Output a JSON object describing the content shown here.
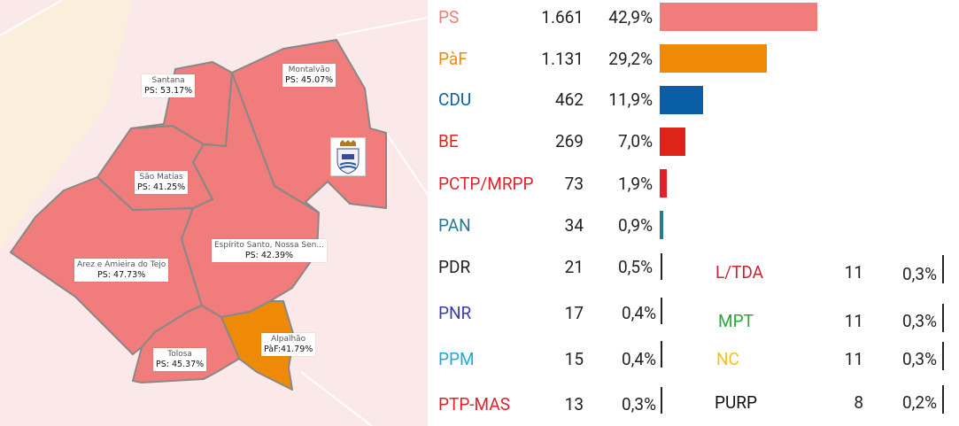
{
  "colors": {
    "ps": "#f07c7c",
    "paf": "#ee8a05",
    "cdu": "#0a5ea8",
    "be": "#dd2419",
    "pctp": "#e1222d",
    "pan": "#2a7a8f",
    "pdr": "#222222",
    "pnr": "#3c3cb4",
    "ppm": "#21a8dc",
    "ptp": "#e1222d",
    "ltda": "#cc2233",
    "mpt": "#28a83a",
    "nc": "#f2c21b",
    "purp": "#111111"
  },
  "map": {
    "crest_icon": "municipality-coat-of-arms-icon",
    "parishes": [
      {
        "name": "Santana",
        "result": "PS: 53.17%",
        "winner": "PS"
      },
      {
        "name": "Montalvão",
        "result": "PS: 45.07%",
        "winner": "PS"
      },
      {
        "name": "São Matias",
        "result": "PS: 41.25%",
        "winner": "PS"
      },
      {
        "name": "Espírito Santo, Nossa Sen...",
        "result": "PS: 42.39%",
        "winner": "PS"
      },
      {
        "name": "Arez e Amieira do Tejo",
        "result": "PS: 47.73%",
        "winner": "PS"
      },
      {
        "name": "Alpalhão",
        "result": "PàF:41.79%",
        "winner": "PàF"
      },
      {
        "name": "Tolosa",
        "result": "PS: 45.37%",
        "winner": "PS"
      }
    ]
  },
  "results": {
    "main": [
      {
        "party": "PS",
        "votes": "1.661",
        "pct": "42,9%",
        "share": 42.9,
        "color": "#f07c7c"
      },
      {
        "party": "PàF",
        "votes": "1.131",
        "pct": "29,2%",
        "share": 29.2,
        "color": "#ee8a05"
      },
      {
        "party": "CDU",
        "votes": "462",
        "pct": "11,9%",
        "share": 11.9,
        "color": "#0a5ea8"
      },
      {
        "party": "BE",
        "votes": "269",
        "pct": "7,0%",
        "share": 7.0,
        "color": "#dd2419"
      },
      {
        "party": "PCTP/MRPP",
        "votes": "73",
        "pct": "1,9%",
        "share": 1.9,
        "color": "#e1222d"
      },
      {
        "party": "PAN",
        "votes": "34",
        "pct": "0,9%",
        "share": 0.9,
        "color": "#2a7a8f"
      }
    ],
    "minor_left": [
      {
        "party": "PDR",
        "votes": "21",
        "pct": "0,5%",
        "color": "#222222"
      },
      {
        "party": "PNR",
        "votes": "17",
        "pct": "0,4%",
        "color": "#3c3cb4"
      },
      {
        "party": "PPM",
        "votes": "15",
        "pct": "0,4%",
        "color": "#21a8dc"
      },
      {
        "party": "PTP-MAS",
        "votes": "13",
        "pct": "0,3%",
        "color": "#e1222d"
      }
    ],
    "minor_right": [
      {
        "party": "L/TDA",
        "votes": "11",
        "pct": "0,3%",
        "color": "#cc2233"
      },
      {
        "party": "MPT",
        "votes": "11",
        "pct": "0,3%",
        "color": "#28a83a"
      },
      {
        "party": "NC",
        "votes": "11",
        "pct": "0,3%",
        "color": "#f2c21b"
      },
      {
        "party": "PURP",
        "votes": "8",
        "pct": "0,2%",
        "color": "#111111"
      }
    ]
  }
}
